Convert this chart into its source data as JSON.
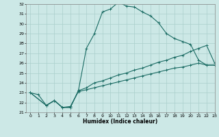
{
  "xlabel": "Humidex (Indice chaleur)",
  "xlim": [
    -0.5,
    23
  ],
  "ylim": [
    21,
    32
  ],
  "xticks": [
    0,
    1,
    2,
    3,
    4,
    5,
    6,
    7,
    8,
    9,
    10,
    11,
    12,
    13,
    14,
    15,
    16,
    17,
    18,
    19,
    20,
    21,
    22,
    23
  ],
  "yticks": [
    21,
    22,
    23,
    24,
    25,
    26,
    27,
    28,
    29,
    30,
    31,
    32
  ],
  "bg_color": "#cce8e6",
  "line_color": "#1a6b63",
  "grid_color": "#aacfcc",
  "series1_x": [
    0,
    1,
    2,
    3,
    4,
    5,
    6,
    7,
    8,
    9,
    10,
    11,
    12,
    13,
    14,
    15,
    16,
    17,
    18,
    19,
    20,
    21,
    22,
    23
  ],
  "series1_y": [
    23.0,
    22.8,
    21.7,
    22.2,
    21.5,
    21.5,
    23.2,
    27.5,
    29.0,
    31.2,
    31.5,
    32.2,
    31.8,
    31.7,
    31.2,
    30.8,
    30.1,
    29.0,
    28.5,
    28.2,
    27.9,
    26.3,
    25.8,
    25.8
  ],
  "series2_x": [
    0,
    2,
    3,
    4,
    5,
    6,
    7,
    8,
    9,
    10,
    11,
    12,
    13,
    14,
    15,
    16,
    17,
    18,
    19,
    20,
    21,
    22,
    23
  ],
  "series2_y": [
    23.0,
    21.7,
    22.2,
    21.5,
    21.5,
    23.2,
    23.5,
    24.0,
    24.2,
    24.5,
    24.8,
    25.0,
    25.3,
    25.5,
    25.8,
    26.1,
    26.3,
    26.6,
    26.8,
    27.2,
    27.5,
    27.8,
    26.0
  ],
  "series3_x": [
    0,
    2,
    3,
    4,
    5,
    6,
    7,
    8,
    9,
    10,
    11,
    12,
    13,
    14,
    15,
    16,
    17,
    18,
    19,
    20,
    21,
    22,
    23
  ],
  "series3_y": [
    23.0,
    21.7,
    22.2,
    21.5,
    21.6,
    23.1,
    23.3,
    23.5,
    23.7,
    23.9,
    24.1,
    24.3,
    24.5,
    24.7,
    24.9,
    25.1,
    25.3,
    25.5,
    25.6,
    25.8,
    26.0,
    25.8,
    25.8
  ]
}
